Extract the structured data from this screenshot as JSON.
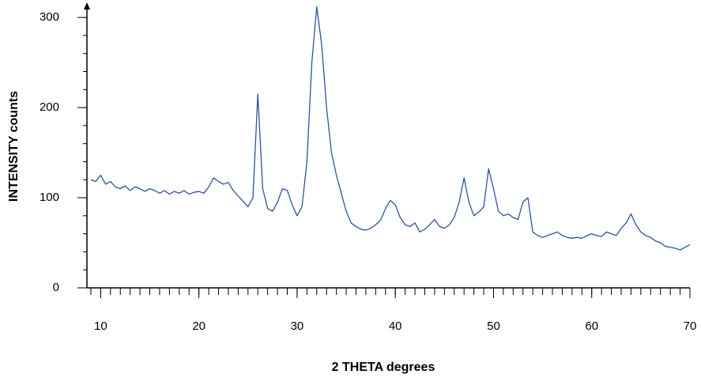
{
  "chart_data": {
    "type": "line",
    "x_label": "2 THETA degrees",
    "y_label": "INTENSITY counts",
    "xlim": [
      8.6,
      70
    ],
    "ylim": [
      0,
      315
    ],
    "xticks": [
      10,
      20,
      30,
      40,
      50,
      60,
      70
    ],
    "yticks": [
      0,
      100,
      200,
      300
    ],
    "xminorticks": [
      9,
      10,
      11,
      12,
      13,
      14,
      15,
      16,
      17,
      18,
      19,
      20,
      21,
      22,
      23,
      24,
      25,
      26,
      27,
      28,
      29,
      30,
      31,
      32,
      33,
      34,
      35,
      36,
      37,
      38,
      39,
      40,
      41,
      42,
      43,
      44,
      45,
      46,
      47,
      48,
      49,
      50,
      51,
      52,
      53,
      54,
      55,
      56,
      57,
      58,
      59,
      60,
      61,
      62,
      63,
      64,
      65,
      66,
      67,
      68,
      69,
      70
    ],
    "yminorticks": [
      0,
      20,
      40,
      60,
      80,
      100,
      120,
      140,
      160,
      180,
      200,
      220,
      240,
      260,
      280,
      300
    ],
    "x": [
      9,
      9.5,
      10,
      10.5,
      11,
      11.5,
      12,
      12.5,
      13,
      13.5,
      14,
      14.5,
      15,
      15.5,
      16,
      16.5,
      17,
      17.5,
      18,
      18.5,
      19,
      19.5,
      20,
      20.5,
      21,
      21.5,
      22,
      22.5,
      23,
      23.5,
      24,
      24.5,
      25,
      25.5,
      26,
      26.5,
      27,
      27.5,
      28,
      28.5,
      29,
      29.5,
      30,
      30.5,
      31,
      31.5,
      32,
      32.5,
      33,
      33.5,
      34,
      34.5,
      35,
      35.5,
      36,
      36.5,
      37,
      37.5,
      38,
      38.5,
      39,
      39.5,
      40,
      40.5,
      41,
      41.5,
      42,
      42.5,
      43,
      43.5,
      44,
      44.5,
      45,
      45.5,
      46,
      46.5,
      47,
      47.5,
      48,
      48.5,
      49,
      49.5,
      50,
      50.5,
      51,
      51.5,
      52,
      52.5,
      53,
      53.5,
      54,
      54.5,
      55,
      55.5,
      56,
      56.5,
      57,
      57.5,
      58,
      58.5,
      59,
      59.5,
      60,
      60.5,
      61,
      61.5,
      62,
      62.5,
      63,
      63.5,
      64,
      64.5,
      65,
      65.5,
      66,
      66.5,
      67,
      67.5,
      68,
      68.5,
      69,
      69.5,
      70
    ],
    "series": [
      {
        "color": "#2f52a0",
        "values": [
          120,
          118,
          125,
          115,
          118,
          112,
          110,
          113,
          108,
          112,
          110,
          107,
          110,
          108,
          105,
          108,
          104,
          107,
          105,
          108,
          104,
          106,
          107,
          105,
          112,
          122,
          118,
          115,
          117,
          108,
          102,
          96,
          90,
          100,
          215,
          110,
          88,
          85,
          95,
          110,
          108,
          92,
          80,
          90,
          140,
          250,
          312,
          270,
          200,
          150,
          125,
          105,
          85,
          72,
          68,
          65,
          64,
          66,
          70,
          75,
          88,
          97,
          92,
          78,
          70,
          68,
          72,
          62,
          65,
          70,
          76,
          68,
          66,
          70,
          78,
          95,
          122,
          95,
          80,
          84,
          90,
          132,
          110,
          85,
          80,
          82,
          78,
          76,
          95,
          100,
          62,
          58,
          56,
          58,
          60,
          62,
          58,
          56,
          55,
          56,
          55,
          58,
          60,
          58,
          57,
          62,
          60,
          58,
          66,
          72,
          82,
          70,
          62,
          58,
          56,
          52,
          50,
          46,
          45,
          44,
          42,
          45,
          48
        ]
      }
    ]
  }
}
